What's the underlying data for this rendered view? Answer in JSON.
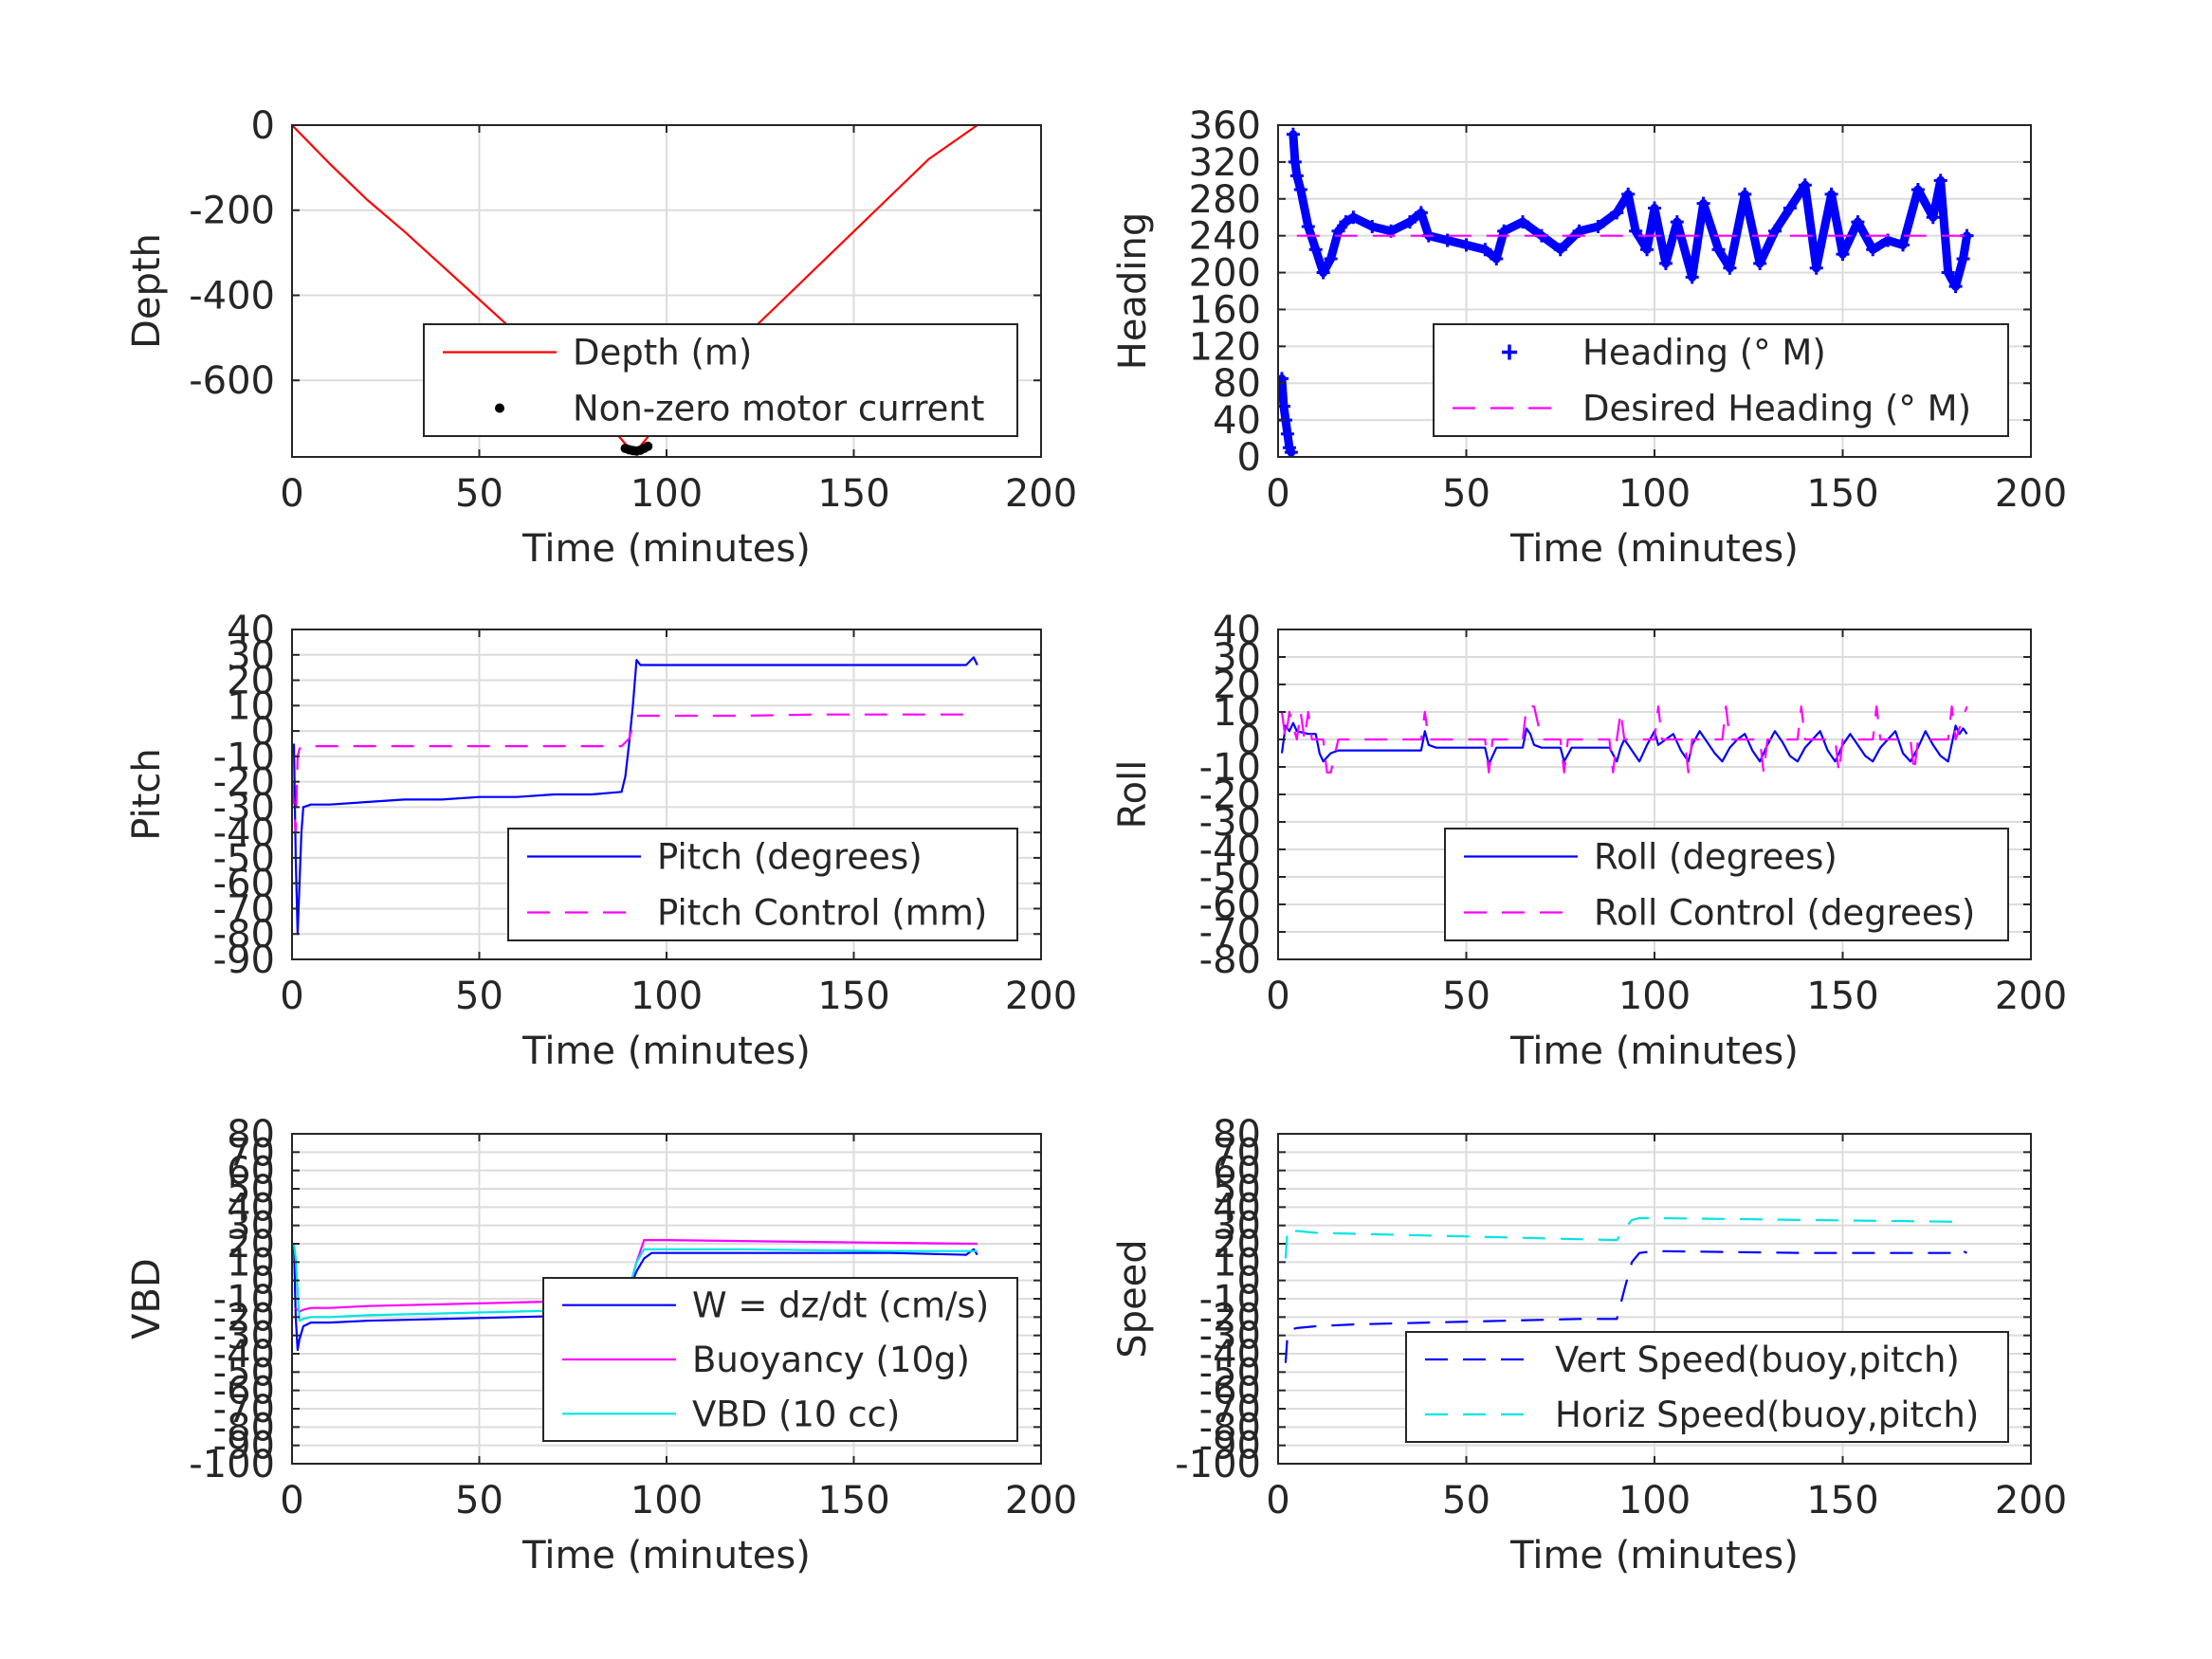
{
  "figure": {
    "background": "#ffffff",
    "grid_color": "#dcdcdc",
    "axis_color": "#262626"
  },
  "chart_data": [
    {
      "type": "line",
      "title": "",
      "xlabel": "Time (minutes)",
      "ylabel": "Depth",
      "xlim": [
        0,
        200
      ],
      "ylim": [
        -780,
        0
      ],
      "xticks": [
        0,
        50,
        100,
        150,
        200
      ],
      "yticks": [
        -600,
        -400,
        -200,
        0
      ],
      "grid": true,
      "legend_location": "bottom-right",
      "series": [
        {
          "name": "Depth (m)",
          "color": "#ff0000",
          "style": "solid",
          "marker": "none",
          "x": [
            0,
            10,
            20,
            30,
            40,
            50,
            60,
            70,
            80,
            90,
            92,
            100,
            110,
            120,
            130,
            140,
            150,
            160,
            170,
            183
          ],
          "y": [
            0,
            -90,
            -175,
            -250,
            -330,
            -410,
            -490,
            -570,
            -655,
            -760,
            -765,
            -680,
            -590,
            -505,
            -420,
            -335,
            -250,
            -165,
            -80,
            0
          ]
        },
        {
          "name": "Non-zero motor current",
          "color": "#000000",
          "style": "none",
          "marker": "dot",
          "x": [
            89,
            90,
            91,
            92,
            93,
            94,
            95
          ],
          "y": [
            -760,
            -763,
            -765,
            -766,
            -764,
            -760,
            -755
          ]
        }
      ]
    },
    {
      "type": "line",
      "title": "",
      "xlabel": "Time (minutes)",
      "ylabel": "Heading",
      "xlim": [
        0,
        200
      ],
      "ylim": [
        0,
        360
      ],
      "xticks": [
        0,
        50,
        100,
        150,
        200
      ],
      "yticks": [
        0,
        40,
        80,
        120,
        160,
        200,
        240,
        280,
        320,
        360
      ],
      "grid": true,
      "legend_location": "bottom-right",
      "series": [
        {
          "name": "Heading (° M)",
          "color": "#0000ff",
          "style": "none",
          "marker": "plus",
          "x": [
            1,
            1.5,
            2,
            2.5,
            3,
            3.5,
            4,
            4.5,
            5,
            6,
            8,
            10,
            12,
            14,
            16,
            18,
            20,
            25,
            30,
            35,
            38,
            40,
            45,
            50,
            55,
            58,
            60,
            65,
            70,
            75,
            80,
            85,
            90,
            93,
            95,
            98,
            100,
            103,
            106,
            110,
            113,
            117,
            120,
            124,
            128,
            132,
            136,
            140,
            143,
            147,
            150,
            154,
            158,
            162,
            166,
            170,
            174,
            176,
            178,
            180,
            182,
            183
          ],
          "y": [
            85,
            55,
            40,
            25,
            10,
            5,
            350,
            320,
            305,
            290,
            250,
            225,
            200,
            215,
            245,
            255,
            260,
            250,
            245,
            255,
            265,
            240,
            235,
            230,
            225,
            215,
            245,
            255,
            240,
            225,
            245,
            250,
            265,
            285,
            245,
            225,
            270,
            210,
            255,
            195,
            275,
            225,
            205,
            285,
            210,
            245,
            270,
            295,
            205,
            285,
            220,
            255,
            225,
            235,
            230,
            290,
            260,
            300,
            200,
            185,
            215,
            240
          ]
        },
        {
          "name": "Desired Heading (° M)",
          "color": "#ff00ff",
          "style": "dashed",
          "marker": "none",
          "x": [
            5,
            183
          ],
          "y": [
            240,
            240
          ]
        }
      ]
    },
    {
      "type": "line",
      "title": "",
      "xlabel": "Time (minutes)",
      "ylabel": "Pitch",
      "xlim": [
        0,
        200
      ],
      "ylim": [
        -90,
        40
      ],
      "xticks": [
        0,
        50,
        100,
        150,
        200
      ],
      "yticks": [
        -90,
        -80,
        -70,
        -60,
        -50,
        -40,
        -30,
        -20,
        -10,
        0,
        10,
        20,
        30,
        40
      ],
      "grid": true,
      "legend_location": "bottom-right",
      "series": [
        {
          "name": "Pitch (degrees)",
          "color": "#0000ff",
          "style": "solid",
          "marker": "none",
          "x": [
            0.5,
            1,
            1.5,
            2,
            2.5,
            3,
            5,
            10,
            20,
            30,
            40,
            50,
            60,
            70,
            80,
            88,
            89,
            90,
            91,
            92,
            93,
            100,
            120,
            140,
            160,
            180,
            182,
            183
          ],
          "y": [
            -5,
            -50,
            -80,
            -60,
            -40,
            -30,
            -29,
            -29,
            -28,
            -27,
            -27,
            -26,
            -26,
            -25,
            -25,
            -24,
            -18,
            -5,
            10,
            28,
            26,
            26,
            26,
            26,
            26,
            26,
            29,
            26
          ]
        },
        {
          "name": "Pitch Control (mm)",
          "color": "#ff00ff",
          "style": "dashed",
          "marker": "none",
          "x": [
            0,
            1,
            1.5,
            2,
            3,
            5,
            20,
            40,
            60,
            80,
            88,
            90,
            91,
            92,
            93,
            100,
            120,
            140,
            160,
            183
          ],
          "y": [
            -20,
            -40,
            -10,
            -7,
            -6,
            -6,
            -6,
            -6,
            -6,
            -6,
            -6,
            -3,
            2,
            6,
            6,
            6,
            6,
            6.5,
            6.5,
            6.5
          ]
        }
      ]
    },
    {
      "type": "line",
      "title": "",
      "xlabel": "Time (minutes)",
      "ylabel": "Roll",
      "xlim": [
        0,
        200
      ],
      "ylim": [
        -80,
        40
      ],
      "xticks": [
        0,
        50,
        100,
        150,
        200
      ],
      "yticks": [
        -80,
        -70,
        -60,
        -50,
        -40,
        -30,
        -20,
        -10,
        0,
        10,
        20,
        30,
        40
      ],
      "grid": true,
      "legend_location": "bottom-right",
      "series": [
        {
          "name": "Roll (degrees)",
          "color": "#0000ff",
          "style": "solid",
          "marker": "none",
          "x": [
            1,
            2,
            3,
            4,
            5,
            8,
            10,
            11,
            12,
            14,
            16,
            20,
            30,
            38,
            39,
            40,
            42,
            50,
            55,
            56,
            58,
            65,
            66,
            67,
            68,
            70,
            75,
            76,
            78,
            88,
            90,
            91,
            92,
            94,
            96,
            98,
            100,
            101,
            103,
            105,
            107,
            109,
            110,
            112,
            114,
            116,
            118,
            120,
            122,
            124,
            126,
            128,
            130,
            132,
            134,
            136,
            138,
            140,
            142,
            144,
            146,
            148,
            150,
            152,
            154,
            156,
            158,
            160,
            162,
            164,
            166,
            168,
            170,
            172,
            174,
            176,
            178,
            180,
            181,
            182,
            183
          ],
          "y": [
            -5,
            5,
            3,
            6,
            3,
            2,
            2,
            -5,
            -8,
            -5,
            -4,
            -4,
            -4,
            -4,
            3,
            -2,
            -3,
            -3,
            -3,
            -9,
            -3,
            -3,
            4,
            2,
            -2,
            -3,
            -3,
            -8,
            -3,
            -3,
            -8,
            -3,
            0,
            -4,
            -8,
            -2,
            3,
            -2,
            0,
            2,
            -4,
            -8,
            -2,
            3,
            -1,
            -5,
            -8,
            -3,
            0,
            2,
            -4,
            -8,
            -2,
            3,
            -1,
            -6,
            -8,
            -3,
            0,
            3,
            -4,
            -8,
            -2,
            2,
            -2,
            -6,
            -8,
            -3,
            0,
            3,
            -5,
            -8,
            -3,
            3,
            -2,
            -6,
            -8,
            5,
            2,
            4,
            2
          ]
        },
        {
          "name": "Roll Control (degrees)",
          "color": "#ff00ff",
          "style": "dashed",
          "marker": "none",
          "x": [
            1,
            2,
            3,
            5,
            6,
            7,
            8,
            9,
            10,
            12,
            13,
            14,
            16,
            30,
            38,
            39,
            40,
            55,
            56,
            57,
            65,
            66,
            68,
            70,
            75,
            76,
            77,
            88,
            89,
            90,
            91,
            92,
            100,
            101,
            102,
            108,
            109,
            110,
            118,
            119,
            120,
            128,
            129,
            130,
            138,
            139,
            140,
            148,
            149,
            150,
            158,
            159,
            160,
            168,
            169,
            170,
            178,
            179,
            180,
            183
          ],
          "y": [
            10,
            0,
            10,
            0,
            10,
            0,
            10,
            0,
            0,
            0,
            -12,
            -12,
            0,
            0,
            0,
            10,
            0,
            0,
            -12,
            0,
            0,
            12,
            12,
            0,
            0,
            -12,
            0,
            0,
            -12,
            0,
            10,
            0,
            0,
            12,
            0,
            0,
            -12,
            0,
            0,
            12,
            0,
            0,
            -12,
            0,
            0,
            12,
            0,
            0,
            -12,
            0,
            0,
            12,
            0,
            0,
            -12,
            0,
            0,
            12,
            0,
            12
          ]
        }
      ]
    },
    {
      "type": "line",
      "title": "",
      "xlabel": "Time (minutes)",
      "ylabel": "VBD",
      "xlim": [
        0,
        200
      ],
      "ylim": [
        -100,
        80
      ],
      "xticks": [
        0,
        50,
        100,
        150,
        200
      ],
      "yticks": [
        -100,
        -90,
        -80,
        -70,
        -60,
        -50,
        -40,
        -30,
        -20,
        -10,
        0,
        10,
        20,
        30,
        40,
        50,
        60,
        70,
        80
      ],
      "grid": true,
      "legend_location": "bottom-right",
      "series": [
        {
          "name": "W = dz/dt (cm/s)",
          "color": "#0000ff",
          "style": "solid",
          "marker": "none",
          "x": [
            0.5,
            1,
            1.5,
            2,
            3,
            4,
            5,
            10,
            20,
            40,
            60,
            80,
            88,
            89,
            90,
            92,
            94,
            96,
            100,
            120,
            140,
            160,
            180,
            182,
            183
          ],
          "y": [
            20,
            -20,
            -38,
            -32,
            -25,
            -24,
            -23,
            -23,
            -22,
            -21,
            -20,
            -19,
            -18,
            -12,
            -5,
            5,
            12,
            15,
            15,
            15,
            15,
            15,
            14,
            17,
            14
          ]
        },
        {
          "name": "Buoyancy (10g)",
          "color": "#ff00ff",
          "style": "solid",
          "marker": "none",
          "x": [
            1,
            2,
            3,
            5,
            10,
            20,
            40,
            60,
            80,
            89,
            90,
            92,
            94,
            100,
            120,
            140,
            160,
            183
          ],
          "y": [
            -15,
            -17,
            -16,
            -15,
            -15,
            -14,
            -13,
            -12,
            -11,
            -11,
            -5,
            10,
            22,
            22,
            21.5,
            21,
            20.5,
            20
          ]
        },
        {
          "name": "VBD (10 cc)",
          "color": "#00e5e5",
          "style": "solid",
          "marker": "none",
          "x": [
            0.5,
            1,
            2,
            3,
            5,
            10,
            20,
            40,
            60,
            80,
            89,
            90,
            92,
            94,
            100,
            120,
            140,
            160,
            180,
            183
          ],
          "y": [
            20,
            12,
            -22,
            -21,
            -20,
            -20,
            -19,
            -18,
            -17,
            -16,
            -16,
            -5,
            10,
            17,
            17,
            17,
            16.5,
            16,
            16,
            16
          ]
        }
      ]
    },
    {
      "type": "line",
      "title": "",
      "xlabel": "Time (minutes)",
      "ylabel": "Speed",
      "xlim": [
        0,
        200
      ],
      "ylim": [
        -100,
        80
      ],
      "xticks": [
        0,
        50,
        100,
        150,
        200
      ],
      "yticks": [
        -100,
        -90,
        -80,
        -70,
        -60,
        -50,
        -40,
        -30,
        -20,
        -10,
        0,
        10,
        20,
        30,
        40,
        50,
        60,
        70,
        80
      ],
      "grid": true,
      "legend_location": "bottom-right",
      "series": [
        {
          "name": "Vert Speed(buoy,pitch)",
          "color": "#0000ff",
          "style": "dashed",
          "marker": "none",
          "x": [
            2,
            2.5,
            3,
            5,
            10,
            20,
            40,
            60,
            80,
            90,
            92,
            94,
            96,
            100,
            120,
            140,
            160,
            180,
            181,
            183
          ],
          "y": [
            -45,
            -30,
            -27,
            -26,
            -25,
            -24,
            -23,
            -22,
            -21,
            -21,
            -5,
            10,
            15,
            16,
            15.5,
            15,
            15,
            15,
            17,
            15
          ]
        },
        {
          "name": "Horiz Speed(buoy,pitch)",
          "color": "#00e5e5",
          "style": "dashed",
          "marker": "none",
          "x": [
            2,
            2.5,
            3,
            5,
            10,
            20,
            40,
            60,
            80,
            90,
            92,
            94,
            96,
            100,
            120,
            140,
            160,
            180,
            183
          ],
          "y": [
            12,
            28,
            27,
            27,
            26,
            25.5,
            24.5,
            23.5,
            22.5,
            22,
            28,
            33,
            34,
            34,
            33.5,
            33,
            32.5,
            32,
            31
          ]
        }
      ]
    }
  ]
}
